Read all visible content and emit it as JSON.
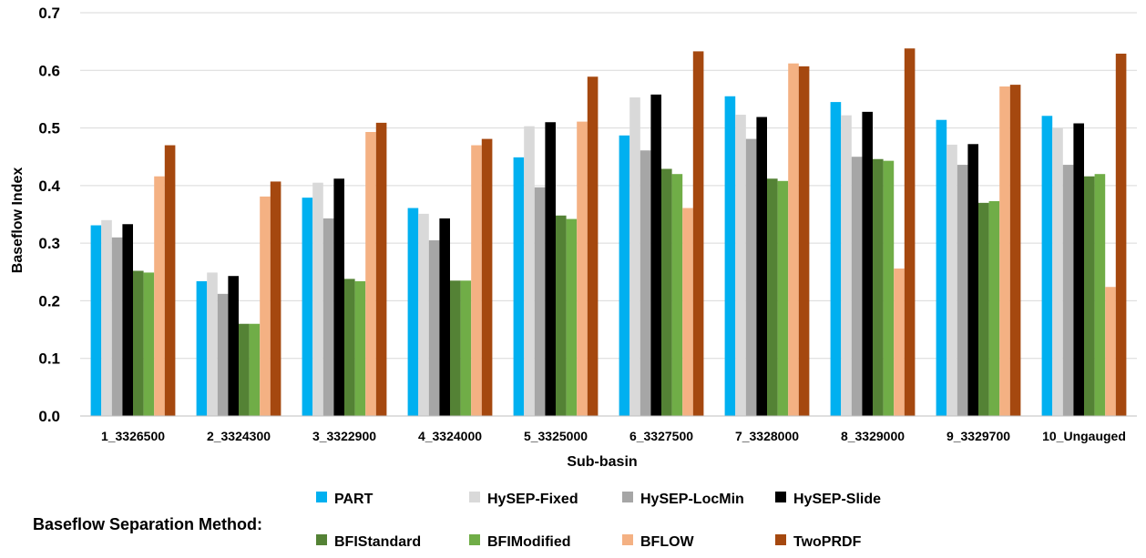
{
  "chart_data": {
    "type": "bar",
    "title": "",
    "xlabel": "Sub-basin",
    "ylabel": "Baseflow Index",
    "ylim": [
      0,
      0.7
    ],
    "yticks": [
      "0.0",
      "0.1",
      "0.2",
      "0.3",
      "0.4",
      "0.5",
      "0.6",
      "0.7"
    ],
    "grid": true,
    "legend_title": "Baseflow Separation Method:",
    "legend_position": "bottom",
    "categories": [
      "1_3326500",
      "2_3324300",
      "3_3322900",
      "4_3324000",
      "5_3325000",
      "6_3327500",
      "7_3328000",
      "8_3329000",
      "9_3329700",
      "10_Ungauged"
    ],
    "series": [
      {
        "name": "PART",
        "color": "#00B0F0",
        "values": [
          0.331,
          0.234,
          0.379,
          0.361,
          0.449,
          0.487,
          0.555,
          0.545,
          0.514,
          0.521
        ]
      },
      {
        "name": "HySEP-Fixed",
        "color": "#D9D9D9",
        "values": [
          0.34,
          0.249,
          0.405,
          0.351,
          0.503,
          0.553,
          0.523,
          0.522,
          0.471,
          0.5
        ]
      },
      {
        "name": "HySEP-LocMin",
        "color": "#A6A6A6",
        "values": [
          0.31,
          0.212,
          0.343,
          0.305,
          0.397,
          0.461,
          0.481,
          0.45,
          0.436,
          0.436
        ]
      },
      {
        "name": "HySEP-Slide",
        "color": "#000000",
        "values": [
          0.333,
          0.243,
          0.412,
          0.343,
          0.51,
          0.558,
          0.519,
          0.528,
          0.472,
          0.508
        ]
      },
      {
        "name": "BFIStandard",
        "color": "#548235",
        "values": [
          0.252,
          0.16,
          0.238,
          0.235,
          0.348,
          0.429,
          0.412,
          0.446,
          0.37,
          0.416
        ]
      },
      {
        "name": "BFIModified",
        "color": "#70AD47",
        "values": [
          0.249,
          0.16,
          0.234,
          0.235,
          0.342,
          0.42,
          0.408,
          0.443,
          0.373,
          0.42
        ]
      },
      {
        "name": "BFLOW",
        "color": "#F4B183",
        "values": [
          0.416,
          0.381,
          0.493,
          0.47,
          0.511,
          0.361,
          0.612,
          0.256,
          0.572,
          0.224
        ]
      },
      {
        "name": "TwoPRDF",
        "color": "#A5480F",
        "values": [
          0.47,
          0.407,
          0.509,
          0.481,
          0.589,
          0.633,
          0.607,
          0.638,
          0.575,
          0.629
        ]
      }
    ]
  }
}
